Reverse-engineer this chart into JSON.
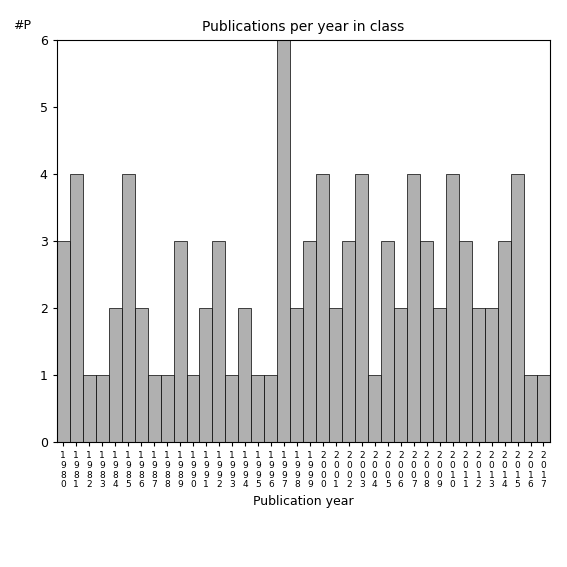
{
  "years": [
    "1980",
    "1981",
    "1982",
    "1983",
    "1984",
    "1985",
    "1986",
    "1987",
    "1988",
    "1989",
    "1990",
    "1991",
    "1992",
    "1993",
    "1994",
    "1995",
    "1996",
    "1997",
    "1998",
    "1999",
    "2000",
    "2001",
    "2002",
    "2003",
    "2004",
    "2005",
    "2006",
    "2007",
    "2008",
    "2009",
    "2010",
    "2011",
    "2012",
    "2013",
    "2014",
    "2015",
    "2016",
    "2017"
  ],
  "values": [
    3,
    4,
    1,
    1,
    2,
    4,
    2,
    1,
    1,
    3,
    1,
    2,
    3,
    1,
    2,
    1,
    1,
    6,
    2,
    3,
    4,
    2,
    3,
    4,
    1,
    3,
    2,
    4,
    3,
    2,
    4,
    3,
    2,
    2,
    3,
    4,
    1,
    1
  ],
  "title": "Publications per year in class",
  "xlabel": "Publication year",
  "ylabel": "#P",
  "ylim": [
    0,
    6
  ],
  "yticks": [
    0,
    1,
    2,
    3,
    4,
    5,
    6
  ],
  "bar_color": "#b0b0b0",
  "bar_edge_color": "#000000",
  "bar_edge_width": 0.5,
  "background_color": "#ffffff",
  "figsize": [
    5.67,
    5.67
  ],
  "dpi": 100
}
